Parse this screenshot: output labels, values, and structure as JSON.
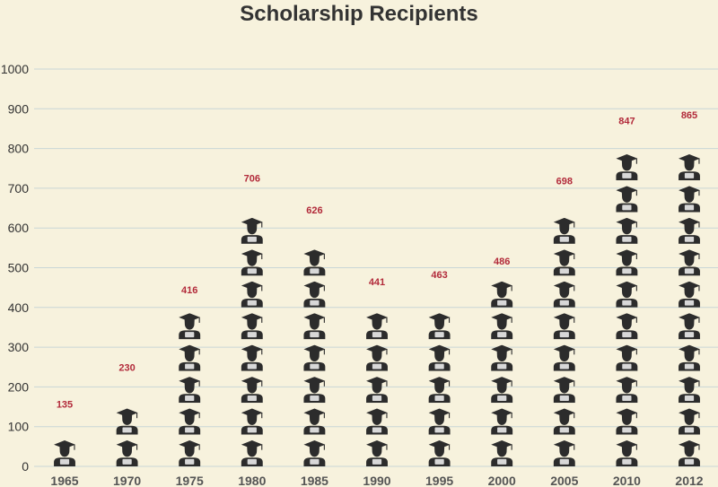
{
  "colors": {
    "background": "#f7f2dd",
    "gridline": "#c9d6d6",
    "icon": "#2c2c2c",
    "icon_paper": "#d8d8d8",
    "data_label": "#b22a3a",
    "title": "#333333"
  },
  "icon_name": "graduate-icon",
  "chart_data": {
    "type": "bar",
    "title": "Scholarship Recipients",
    "xlabel": "",
    "ylabel": "",
    "ylim": [
      0,
      1000
    ],
    "yticks": [
      0,
      100,
      200,
      300,
      400,
      500,
      600,
      700,
      800,
      900,
      1000
    ],
    "grid": true,
    "unit_per_icon": 80,
    "categories": [
      "1965",
      "1970",
      "1975",
      "1980",
      "1985",
      "1990",
      "1995",
      "2000",
      "2005",
      "2010",
      "2012"
    ],
    "values": [
      135,
      230,
      416,
      706,
      626,
      441,
      463,
      486,
      698,
      847,
      865
    ],
    "data_labels": [
      "135",
      "230",
      "416",
      "706",
      "626",
      "441",
      "463",
      "486",
      "698",
      "847",
      "865"
    ]
  }
}
